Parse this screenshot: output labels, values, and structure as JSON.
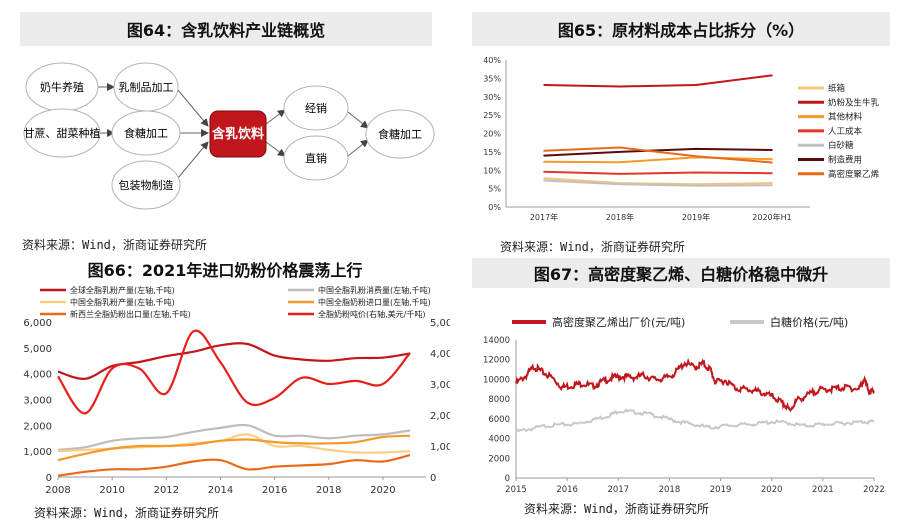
{
  "fig64": {
    "title": "图64：含乳饮料产业链概览",
    "nodes": {
      "dairy_farming": "奶牛养殖",
      "milk_processing": "乳制品加工",
      "sugarcane": "甘蔗、甜菜种植",
      "sugar_processing": "食糖加工",
      "packaging": "包装物制造",
      "center": "含乳饮料",
      "distribution": "经销",
      "direct": "直销",
      "downstream": "食糖加工"
    },
    "source": "资料来源：Wind，浙商证券研究所"
  },
  "fig65": {
    "title": "图65：原材料成本占比拆分（%）",
    "source": "资料来源：Wind，浙商证券研究所",
    "chart_data": {
      "type": "line",
      "categories": [
        "2017年",
        "2018年",
        "2019年",
        "2020年H1"
      ],
      "ylim": [
        0,
        40
      ],
      "yticks": [
        "0%",
        "5%",
        "10%",
        "15%",
        "20%",
        "25%",
        "30%",
        "35%",
        "40%"
      ],
      "series": [
        {
          "name": "纸箱",
          "color": "#f6c27a",
          "values": [
            7.8,
            6.5,
            6.2,
            6.5
          ]
        },
        {
          "name": "奶粉及生牛乳",
          "color": "#c0161c",
          "values": [
            33.2,
            32.8,
            33.2,
            35.8
          ]
        },
        {
          "name": "其他材料",
          "color": "#f39a2b",
          "values": [
            12.3,
            12.2,
            13.5,
            13.0
          ]
        },
        {
          "name": "人工成本",
          "color": "#e8352a",
          "values": [
            9.6,
            9.0,
            9.4,
            9.2
          ]
        },
        {
          "name": "白砂糖",
          "color": "#c0c0c0",
          "values": [
            7.2,
            6.2,
            5.8,
            5.9
          ]
        },
        {
          "name": "制造费用",
          "color": "#5a0a0a",
          "values": [
            14.0,
            15.0,
            15.8,
            15.5
          ]
        },
        {
          "name": "高密度聚乙烯",
          "color": "#e86a1a",
          "values": [
            15.3,
            16.2,
            13.8,
            12.1
          ]
        }
      ]
    }
  },
  "fig66": {
    "title": "图66：2021年进口奶粉价格震荡上行",
    "chart_data": {
      "type": "line",
      "x": [
        2008,
        2009,
        2010,
        2011,
        2012,
        2013,
        2014,
        2015,
        2016,
        2017,
        2018,
        2019,
        2020,
        2021
      ],
      "xticks": [
        2008,
        2010,
        2012,
        2014,
        2016,
        2018,
        2020
      ],
      "ylim_left": [
        0,
        6000
      ],
      "yticks_left": [
        "0",
        "1,000",
        "2,000",
        "3,000",
        "4,000",
        "5,000",
        "6,000"
      ],
      "ylim_right": [
        0,
        5000
      ],
      "yticks_right": [
        "0",
        "1,000",
        "2,000",
        "3,000",
        "4,000",
        "5,000"
      ],
      "series": [
        {
          "name": "全球全脂乳粉产量(左轴,千吨)",
          "color": "#c0161c",
          "axis": "left",
          "values": [
            4080,
            3800,
            4300,
            4450,
            4680,
            4850,
            5100,
            5150,
            4700,
            4550,
            4500,
            4600,
            4620,
            4780
          ]
        },
        {
          "name": "中国全脂乳粉消费量(左轴,千吨)",
          "color": "#bdbdbd",
          "axis": "left",
          "values": [
            1050,
            1150,
            1400,
            1500,
            1550,
            1750,
            1900,
            2000,
            1600,
            1600,
            1500,
            1600,
            1650,
            1800
          ]
        },
        {
          "name": "中国全脂乳粉产量(左轴,千吨)",
          "color": "#f9cf86",
          "axis": "left",
          "values": [
            1000,
            1050,
            1100,
            1150,
            1200,
            1300,
            1400,
            1650,
            1200,
            1200,
            1050,
            950,
            950,
            1000
          ]
        },
        {
          "name": "中国全脂奶粉进口量(左轴,千吨)",
          "color": "#f39a2b",
          "axis": "left",
          "values": [
            650,
            900,
            1100,
            1200,
            1200,
            1250,
            1400,
            1450,
            1350,
            1300,
            1300,
            1350,
            1550,
            1600
          ]
        },
        {
          "name": "新西兰全脂奶粉出口量(左轴,千吨)",
          "color": "#e86a1a",
          "axis": "left",
          "values": [
            50,
            200,
            300,
            300,
            400,
            600,
            650,
            300,
            400,
            450,
            500,
            650,
            600,
            850
          ]
        },
        {
          "name": "全脂奶粉吨价(右轴,美元/千吨)",
          "color": "#e8201a",
          "axis": "right",
          "values": [
            3250,
            2050,
            3500,
            3500,
            2700,
            4700,
            3700,
            2400,
            2550,
            3200,
            3000,
            3100,
            3000,
            4000
          ]
        }
      ]
    }
  },
  "fig67": {
    "title": "图67：高密度聚乙烯、白糖价格稳中微升",
    "source": "资料来源：Wind，浙商证券研究所",
    "chart_data": {
      "type": "line",
      "xticks": [
        2015,
        2016,
        2017,
        2018,
        2019,
        2020,
        2021,
        2022
      ],
      "xlim": [
        2015,
        2022
      ],
      "ylim": [
        0,
        14000
      ],
      "yticks": [
        "0",
        "2000",
        "4000",
        "6000",
        "8000",
        "10000",
        "12000",
        "14000"
      ],
      "series": [
        {
          "name": "高密度聚乙烯出厂价(元/吨)",
          "color": "#c0161c",
          "x": [
            2015.0,
            2015.2,
            2015.35,
            2015.5,
            2015.7,
            2015.9,
            2016.1,
            2016.3,
            2016.5,
            2016.7,
            2016.9,
            2017.1,
            2017.3,
            2017.5,
            2017.7,
            2017.9,
            2018.1,
            2018.3,
            2018.5,
            2018.65,
            2018.8,
            2018.9,
            2019.1,
            2019.3,
            2019.5,
            2019.7,
            2019.9,
            2020.1,
            2020.25,
            2020.35,
            2020.5,
            2020.7,
            2020.9,
            2021.1,
            2021.3,
            2021.5,
            2021.7,
            2021.8,
            2021.9,
            2022.0
          ],
          "values": [
            9600,
            10400,
            11300,
            10800,
            10200,
            9200,
            9400,
            9600,
            9300,
            9800,
            10200,
            10300,
            10200,
            10400,
            10000,
            10100,
            10600,
            11700,
            11200,
            11600,
            11000,
            9700,
            9900,
            9100,
            9000,
            8800,
            8500,
            8000,
            7400,
            6900,
            7900,
            8400,
            8900,
            9000,
            9100,
            9200,
            9000,
            10000,
            8900,
            8600
          ]
        },
        {
          "name": "白糖价格(元/吨)",
          "color": "#c8c8c8",
          "x": [
            2015.0,
            2015.3,
            2015.6,
            2015.9,
            2016.2,
            2016.5,
            2016.8,
            2017.0,
            2017.3,
            2017.6,
            2017.9,
            2018.2,
            2018.5,
            2018.8,
            2019.1,
            2019.4,
            2019.7,
            2020.0,
            2020.3,
            2020.6,
            2020.9,
            2021.2,
            2021.5,
            2021.8,
            2022.0
          ],
          "values": [
            4700,
            5000,
            5300,
            5400,
            5500,
            5900,
            6300,
            6800,
            6700,
            6500,
            6100,
            5700,
            5400,
            5100,
            5300,
            5400,
            5500,
            5700,
            5600,
            5300,
            5400,
            5500,
            5600,
            5700,
            5700
          ]
        }
      ]
    }
  }
}
